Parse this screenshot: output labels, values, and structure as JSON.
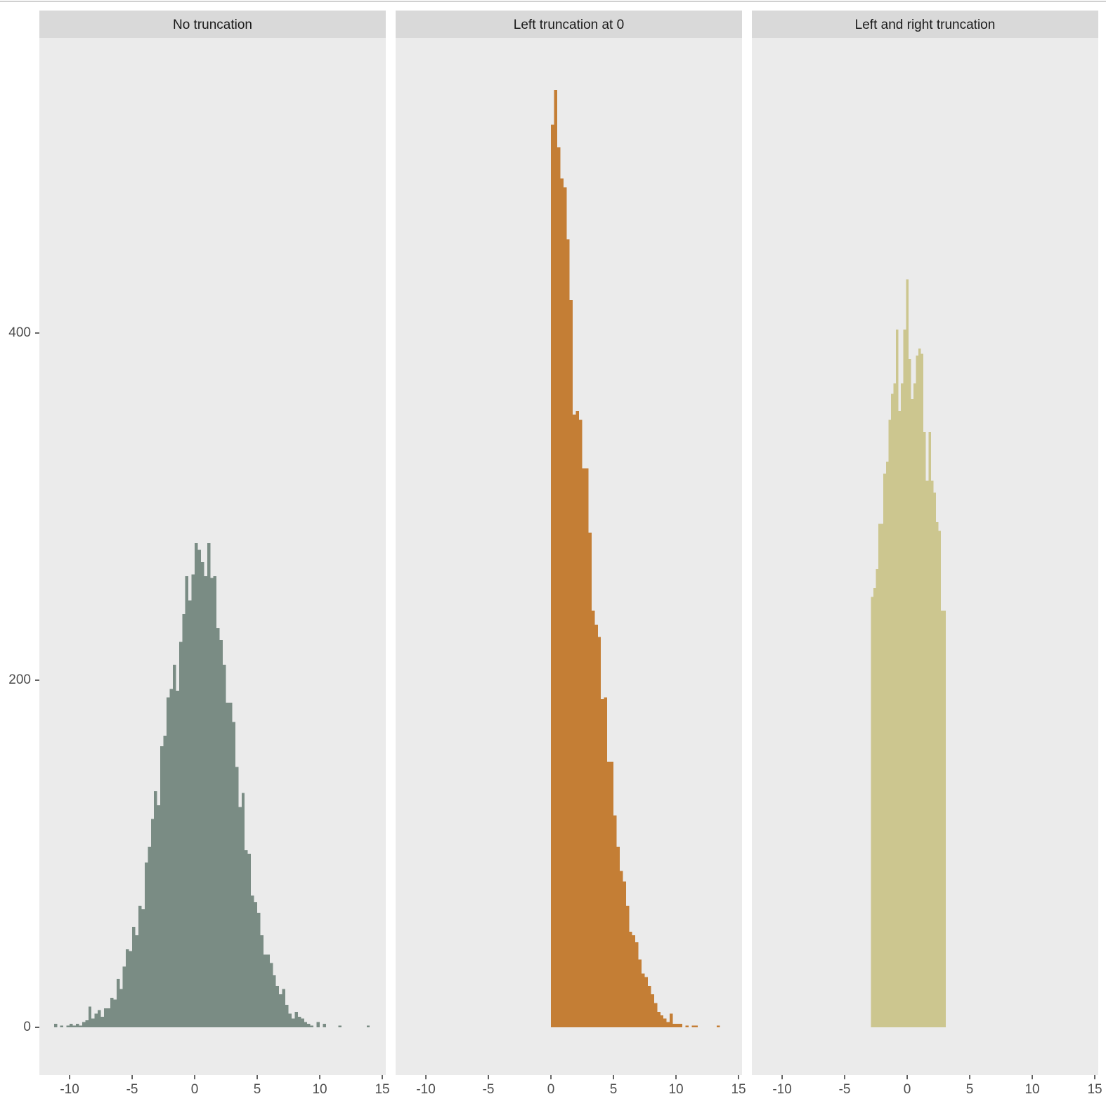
{
  "chart_data": [
    {
      "type": "histogram",
      "title": "No truncation",
      "color": "#7a8c84",
      "grid": false,
      "bins": [
        -11.25,
        -11,
        -10.75,
        -10.5,
        -10.25,
        -10,
        -9.75,
        -9.5,
        -9.25,
        -9,
        -8.75,
        -8.5,
        -8.25,
        -8,
        -7.75,
        -7.5,
        -7.25,
        -7,
        -6.75,
        -6.5,
        -6.25,
        -6,
        -5.75,
        -5.5,
        -5.25,
        -5,
        -4.75,
        -4.5,
        -4.25,
        -4,
        -3.75,
        -3.5,
        -3.25,
        -3,
        -2.75,
        -2.5,
        -2.25,
        -2,
        -1.75,
        -1.5,
        -1.25,
        -1,
        -0.75,
        -0.5,
        -0.25,
        0,
        0.25,
        0.5,
        0.75,
        1,
        1.25,
        1.5,
        1.75,
        2,
        2.25,
        2.5,
        2.75,
        3,
        3.25,
        3.5,
        3.75,
        4,
        4.25,
        4.5,
        4.75,
        5,
        5.25,
        5.5,
        5.75,
        6,
        6.25,
        6.5,
        6.75,
        7,
        7.25,
        7.5,
        7.75,
        8,
        8.25,
        8.5,
        8.75,
        9,
        9.25,
        9.5,
        9.75,
        10,
        10.25,
        10.5,
        10.75,
        11,
        11.25,
        11.5,
        11.75,
        12,
        12.25,
        12.5,
        12.75,
        13,
        13.25,
        13.5,
        13.75,
        14
      ],
      "values": [
        2,
        0,
        1,
        0,
        1,
        2,
        1,
        2,
        1,
        3,
        4,
        12,
        5,
        8,
        10,
        6,
        11,
        11,
        17,
        16,
        28,
        22,
        35,
        45,
        44,
        58,
        53,
        70,
        68,
        95,
        104,
        120,
        136,
        128,
        162,
        168,
        190,
        195,
        209,
        194,
        222,
        238,
        260,
        246,
        261,
        279,
        275,
        268,
        260,
        279,
        259,
        260,
        230,
        223,
        209,
        187,
        187,
        176,
        150,
        127,
        135,
        102,
        100,
        76,
        72,
        66,
        53,
        42,
        42,
        37,
        30,
        24,
        19,
        22,
        13,
        8,
        5,
        9,
        6,
        5,
        3,
        2,
        1,
        0,
        3,
        0,
        2,
        0,
        0,
        0,
        0,
        1,
        0,
        0,
        0,
        0,
        0,
        0,
        0,
        0,
        1
      ],
      "xlim": [
        -12.42,
        15.28
      ],
      "xticks": [
        -10,
        -5,
        0,
        5,
        10,
        15
      ],
      "ylim": [
        -27.5,
        570
      ],
      "yticks": [
        0,
        200,
        400
      ]
    },
    {
      "type": "histogram",
      "title": "Left truncation at 0",
      "color": "#c47e35",
      "grid": false,
      "bins": [
        0,
        0.25,
        0.5,
        0.75,
        1,
        1.25,
        1.5,
        1.75,
        2,
        2.25,
        2.5,
        2.75,
        3,
        3.25,
        3.5,
        3.75,
        4,
        4.25,
        4.5,
        4.75,
        5,
        5.25,
        5.5,
        5.75,
        6,
        6.25,
        6.5,
        6.75,
        7,
        7.25,
        7.5,
        7.75,
        8,
        8.25,
        8.5,
        8.75,
        9,
        9.25,
        9.5,
        9.75,
        10,
        10.25,
        10.5,
        10.75,
        11,
        11.25,
        11.5,
        11.75,
        12,
        12.25,
        12.5,
        12.75,
        13,
        13.25,
        13.5
      ],
      "values": [
        520,
        540,
        507,
        489,
        484,
        454,
        419,
        353,
        355,
        350,
        322,
        322,
        285,
        240,
        232,
        225,
        189,
        190,
        153,
        153,
        122,
        104,
        90,
        84,
        70,
        55,
        53,
        49,
        39,
        31,
        29,
        24,
        19,
        14,
        9,
        7,
        5,
        3,
        8,
        2,
        2,
        2,
        0,
        1,
        0,
        1,
        1,
        0,
        0,
        0,
        0,
        0,
        0,
        1
      ],
      "xlim": [
        -12.42,
        15.28
      ],
      "xticks": [
        -10,
        -5,
        0,
        5,
        10,
        15
      ],
      "ylim": [
        -27.5,
        570
      ]
    },
    {
      "type": "histogram",
      "title": "Left and right truncation",
      "color": "#ccc68f",
      "grid": false,
      "bins": [
        -2.9,
        -2.7,
        -2.5,
        -2.3,
        -2.1,
        -1.9,
        -1.7,
        -1.5,
        -1.3,
        -1.1,
        -0.9,
        -0.7,
        -0.5,
        -0.3,
        -0.1,
        0.1,
        0.3,
        0.5,
        0.7,
        0.9,
        1.1,
        1.3,
        1.5,
        1.7,
        1.9,
        2.1,
        2.3,
        2.5,
        2.7,
        2.9,
        3.1
      ],
      "values": [
        248,
        253,
        264,
        290,
        290,
        319,
        326,
        350,
        365,
        371,
        402,
        355,
        371,
        402,
        431,
        385,
        362,
        371,
        387,
        391,
        388,
        343,
        315,
        343,
        315,
        308,
        291,
        286,
        240,
        240
      ],
      "xlim": [
        -12.42,
        15.28
      ],
      "xticks": [
        -10,
        -5,
        0,
        5,
        10,
        15
      ],
      "ylim": [
        -27.5,
        570
      ]
    }
  ]
}
